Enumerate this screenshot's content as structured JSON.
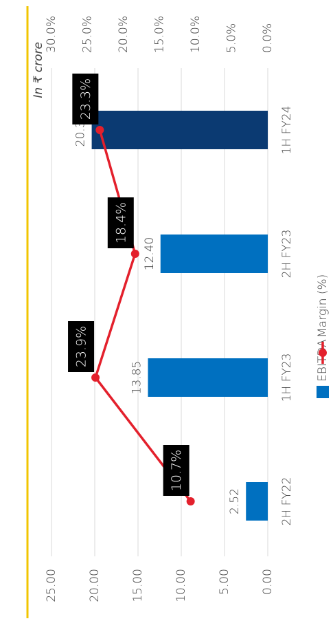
{
  "chart_data": {
    "type": "bar_line",
    "unit_label": "In ₹ crore",
    "categories": [
      "2H FY22",
      "1H FY23",
      "2H FY23",
      "1H FY24"
    ],
    "series": [
      {
        "name": "EBITDA",
        "type": "bar",
        "color": "#0070c0",
        "colors": [
          "#0070c0",
          "#0070c0",
          "#0070c0",
          "#0b3a72"
        ],
        "values": [
          2.52,
          13.85,
          12.4,
          20.35
        ],
        "value_labels": [
          "2.52",
          "13.85",
          "12.40",
          "20.35"
        ]
      },
      {
        "name": "Margin (%)",
        "type": "line",
        "axis": "y2",
        "color": "#e3202c",
        "values": [
          10.7,
          23.9,
          18.4,
          23.3
        ],
        "value_labels": [
          "10.7%",
          "23.9%",
          "18.4%",
          "23.3%"
        ]
      }
    ],
    "ylim": [
      0,
      25
    ],
    "yticks": [
      {
        "value": 0,
        "label": "0.00"
      },
      {
        "value": 5,
        "label": "5.00"
      },
      {
        "value": 10,
        "label": "10.00"
      },
      {
        "value": 15,
        "label": "15.00"
      },
      {
        "value": 20,
        "label": "20.00"
      },
      {
        "value": 25,
        "label": "25.00"
      }
    ],
    "y2lim": [
      0,
      30
    ],
    "y2ticks": [
      {
        "value": 0,
        "label": "0.0%"
      },
      {
        "value": 5,
        "label": "5.0%"
      },
      {
        "value": 10,
        "label": "10.0%"
      },
      {
        "value": 15,
        "label": "15.0%"
      },
      {
        "value": 20,
        "label": "20.0%"
      },
      {
        "value": 25,
        "label": "25.0%"
      },
      {
        "value": 30,
        "label": "30.0%"
      }
    ],
    "grid": true,
    "legend": "bottom"
  }
}
